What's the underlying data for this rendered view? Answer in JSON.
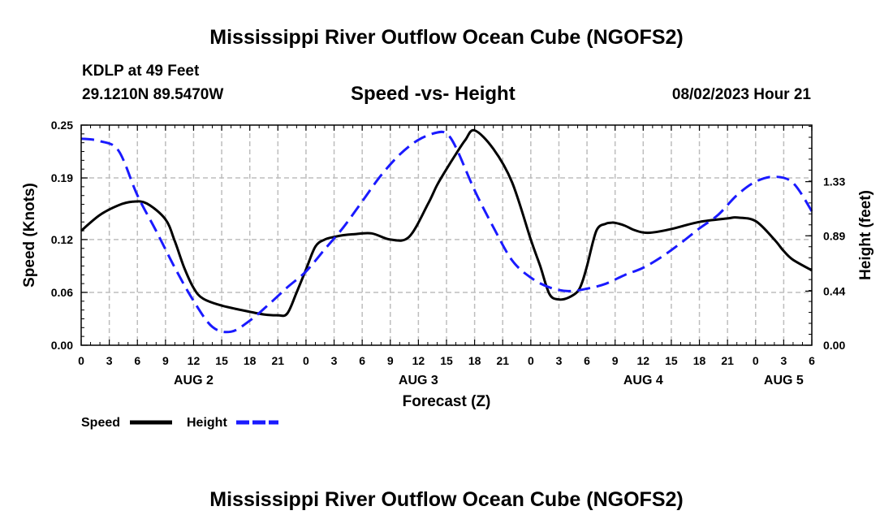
{
  "chart_data": {
    "type": "line",
    "title": "Mississippi River Outflow Ocean Cube (NGOFS2)",
    "footer_title": "Mississippi River Outflow Ocean Cube (NGOFS2)",
    "station": "KDLP at 49 Feet",
    "location": "29.1210N  89.5470W",
    "subtitle": "Speed -vs- Height",
    "datetime": "08/02/2023 Hour 21",
    "xlabel": "Forecast (Z)",
    "ylabel_left": "Speed (Knots)",
    "ylabel_right": "Height (feet)",
    "x_range_hours": [
      0,
      78
    ],
    "x_tick_labels": [
      "0",
      "3",
      "6",
      "9",
      "12",
      "15",
      "18",
      "21",
      "0",
      "3",
      "6",
      "9",
      "12",
      "15",
      "18",
      "21",
      "0",
      "3",
      "6",
      "9",
      "12",
      "15",
      "18",
      "21",
      "0",
      "3",
      "6"
    ],
    "day_labels": [
      {
        "label": "AUG 2",
        "hour": 12
      },
      {
        "label": "AUG 3",
        "hour": 36
      },
      {
        "label": "AUG 4",
        "hour": 60
      },
      {
        "label": "AUG 5",
        "hour": 75
      }
    ],
    "y_left": {
      "range": [
        0,
        0.25
      ],
      "ticks": [
        "0.00",
        "0.06",
        "0.12",
        "0.19",
        "0.25"
      ]
    },
    "y_right": {
      "range": [
        0,
        1.79
      ],
      "ticks": [
        "0.00",
        "0.44",
        "0.89",
        "1.33"
      ]
    },
    "grid": true,
    "series": [
      {
        "name": "Speed",
        "axis": "left",
        "color": "#000000",
        "style": "solid",
        "x": [
          0,
          2,
          4,
          5.5,
          7,
          9,
          10,
          11,
          12,
          13,
          15,
          18,
          19.5,
          21,
          22,
          23,
          24,
          25,
          26,
          27,
          28,
          29,
          31,
          33,
          35,
          37,
          38,
          39,
          40,
          41,
          42,
          44,
          46,
          48,
          49,
          50,
          51,
          52,
          53,
          53.5,
          54,
          55,
          56,
          56.5,
          57,
          58,
          59,
          60,
          61,
          63,
          66,
          69,
          70,
          72,
          74,
          75,
          76,
          78
        ],
        "values": [
          0.13,
          0.148,
          0.159,
          0.163,
          0.161,
          0.143,
          0.118,
          0.088,
          0.065,
          0.053,
          0.045,
          0.038,
          0.035,
          0.034,
          0.036,
          0.06,
          0.086,
          0.112,
          0.12,
          0.123,
          0.125,
          0.126,
          0.127,
          0.12,
          0.123,
          0.16,
          0.182,
          0.2,
          0.217,
          0.233,
          0.244,
          0.223,
          0.185,
          0.12,
          0.09,
          0.058,
          0.052,
          0.054,
          0.061,
          0.072,
          0.09,
          0.13,
          0.138,
          0.139,
          0.139,
          0.136,
          0.131,
          0.128,
          0.128,
          0.132,
          0.14,
          0.144,
          0.145,
          0.141,
          0.12,
          0.107,
          0.097,
          0.085
        ]
      },
      {
        "name": "Height",
        "axis": "right",
        "color": "#1a1aff",
        "style": "dashed",
        "x": [
          0,
          2,
          4,
          6,
          8,
          10,
          12,
          14,
          16,
          18,
          20,
          22,
          24,
          26,
          28,
          30,
          32,
          34,
          36,
          38,
          39,
          40,
          42,
          44,
          46,
          48,
          50,
          52,
          54,
          56,
          58,
          60,
          62,
          64,
          66,
          68,
          70,
          72,
          74,
          76,
          78
        ],
        "values": [
          1.68,
          1.66,
          1.58,
          1.22,
          0.93,
          0.63,
          0.36,
          0.15,
          0.11,
          0.2,
          0.33,
          0.47,
          0.6,
          0.78,
          0.96,
          1.17,
          1.38,
          1.55,
          1.67,
          1.73,
          1.72,
          1.61,
          1.26,
          0.96,
          0.69,
          0.55,
          0.47,
          0.44,
          0.46,
          0.5,
          0.57,
          0.63,
          0.72,
          0.83,
          0.95,
          1.06,
          1.22,
          1.33,
          1.37,
          1.32,
          1.09
        ]
      }
    ],
    "legend": [
      {
        "label": "Speed",
        "color": "#000000",
        "style": "solid"
      },
      {
        "label": "Height",
        "color": "#1a1aff",
        "style": "dashed"
      }
    ]
  }
}
